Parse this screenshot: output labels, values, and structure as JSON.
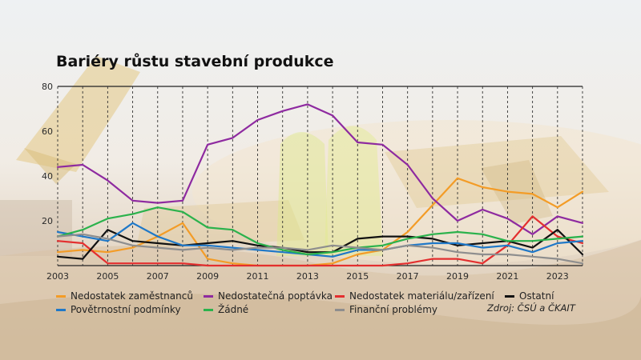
{
  "chart_data": {
    "type": "line",
    "title": "Bariéry růstu stavební produkce",
    "x": [
      2003,
      2004,
      2005,
      2006,
      2007,
      2008,
      2009,
      2010,
      2011,
      2012,
      2013,
      2014,
      2015,
      2016,
      2017,
      2018,
      2019,
      2020,
      2021,
      2022,
      2023,
      2024
    ],
    "x_tick_labels": [
      "2003",
      "2005",
      "2007",
      "2009",
      "2011",
      "2013",
      "2015",
      "2017",
      "2019",
      "2021",
      "2023"
    ],
    "y_tick_labels": [
      "20",
      "40",
      "60",
      "80"
    ],
    "ylim": [
      0,
      80
    ],
    "grid": "vertical dashed lines at each year",
    "legend_position": "bottom",
    "series": [
      {
        "name": "Nedostatek zaměstnanců",
        "color": "#f39c27",
        "values": [
          6,
          7,
          6,
          8,
          13,
          19,
          3,
          1,
          0,
          0,
          0,
          1,
          5,
          7,
          15,
          27,
          39,
          35,
          33,
          32,
          26,
          33
        ]
      },
      {
        "name": "Nedostatečná poptávka",
        "color": "#8e2aa0",
        "values": [
          44,
          45,
          38,
          29,
          28,
          29,
          54,
          57,
          65,
          69,
          72,
          67,
          55,
          54,
          45,
          30,
          20,
          25,
          21,
          14,
          22,
          19
        ]
      },
      {
        "name": "Nedostatek materiálu/zařízení",
        "color": "#e32f2f",
        "values": [
          11,
          10,
          1,
          1,
          1,
          1,
          0,
          0,
          0,
          0,
          0,
          0,
          0,
          0,
          1,
          3,
          3,
          1,
          9,
          22,
          13,
          10
        ]
      },
      {
        "name": "Ostatní",
        "color": "#111111",
        "values": [
          4,
          3,
          16,
          11,
          10,
          9,
          10,
          11,
          9,
          8,
          6,
          6,
          12,
          13,
          13,
          12,
          9,
          10,
          11,
          8,
          16,
          5
        ]
      },
      {
        "name": "Povětrnostní podmínky",
        "color": "#1f78c8",
        "values": [
          15,
          13,
          11,
          19,
          13,
          9,
          9,
          8,
          7,
          6,
          5,
          4,
          7,
          7,
          9,
          10,
          10,
          8,
          9,
          6,
          10,
          11
        ]
      },
      {
        "name": "Žádné",
        "color": "#2bb24c",
        "values": [
          13,
          16,
          21,
          23,
          26,
          24,
          17,
          16,
          10,
          7,
          5,
          6,
          8,
          9,
          12,
          14,
          15,
          14,
          11,
          11,
          12,
          13
        ]
      },
      {
        "name": "Finanční problémy",
        "color": "#8e8e8e",
        "values": [
          13,
          14,
          12,
          9,
          8,
          7,
          8,
          7,
          8,
          8,
          7,
          9,
          8,
          7,
          9,
          8,
          6,
          5,
          5,
          4,
          3,
          1
        ]
      }
    ],
    "source": "Zdroj: ČSÚ a ČKAIT"
  }
}
